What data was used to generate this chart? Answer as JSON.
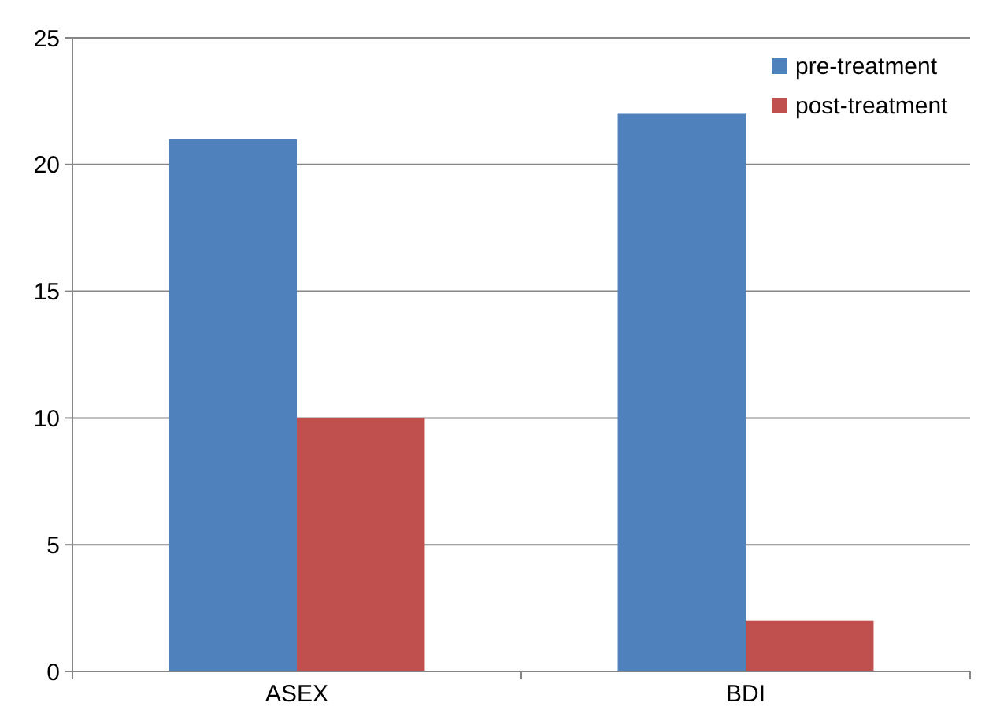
{
  "chart_data": {
    "type": "bar",
    "categories": [
      "ASEX",
      "BDI"
    ],
    "series": [
      {
        "name": "pre-treatment",
        "color": "#4f81bd",
        "values": [
          21,
          22
        ]
      },
      {
        "name": "post-treatment",
        "color": "#c0504d",
        "values": [
          10,
          2
        ]
      }
    ],
    "ylim": [
      0,
      25
    ],
    "yticks": [
      0,
      5,
      10,
      15,
      20,
      25
    ],
    "grid": "y",
    "legend": "top right"
  }
}
